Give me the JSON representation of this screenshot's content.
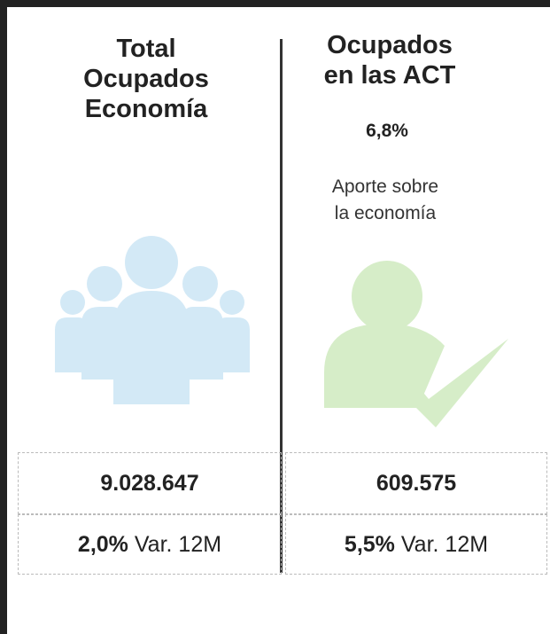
{
  "panels": [
    {
      "title_lines": [
        "Total",
        "Ocupados",
        "Economía"
      ],
      "value": "9.028.647",
      "change": "2,0%",
      "change_label": "Var. 12M"
    },
    {
      "title_lines": [
        "Ocupados",
        "en las ACT"
      ],
      "share": "6,8%",
      "note_lines": [
        "Aporte sobre",
        "la economía"
      ],
      "value": "609.575",
      "change": "5,5%",
      "change_label": "Var. 12M"
    }
  ]
}
